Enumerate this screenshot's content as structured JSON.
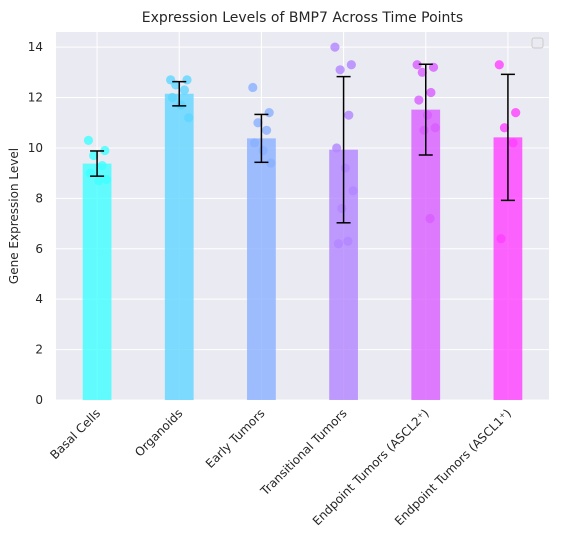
{
  "chart_data": {
    "type": "bar",
    "title": "Expression Levels of BMP7 Across Time Points",
    "xlabel": "",
    "ylabel": "Gene Expression Level",
    "ylim": [
      0,
      14.6
    ],
    "yticks": [
      0,
      2,
      4,
      6,
      8,
      10,
      12,
      14
    ],
    "grid": true,
    "legend": "top-right (empty)",
    "categories": [
      "Basal Cells",
      "Organoids",
      "Early Tumors",
      "Transitional Tumors",
      "Endpoint Tumors (ASCL2⁺)",
      "Endpoint Tumors (ASCL1⁺)"
    ],
    "values": [
      9.38,
      12.15,
      10.38,
      9.93,
      11.52,
      10.42
    ],
    "errors": [
      0.5,
      0.48,
      0.95,
      2.9,
      1.8,
      2.5
    ],
    "points": [
      [
        10.3,
        9.9,
        9.7,
        9.3,
        9.0,
        8.7,
        8.75
      ],
      [
        12.7,
        12.7,
        12.5,
        12.3,
        12.0,
        11.7,
        11.2
      ],
      [
        12.4,
        11.4,
        11.0,
        10.7,
        10.2,
        9.9,
        9.4
      ],
      [
        14.0,
        13.3,
        13.1,
        11.3,
        10.0,
        9.2,
        8.3,
        7.6,
        6.3,
        6.2
      ],
      [
        13.3,
        13.2,
        13.0,
        12.2,
        11.9,
        11.3,
        10.8,
        10.7,
        7.2
      ],
      [
        13.3,
        11.4,
        10.8,
        10.2,
        6.4
      ]
    ],
    "colors": [
      "#40ffff",
      "#5fd6ff",
      "#8ab0ff",
      "#b385ff",
      "#d95cff",
      "#ff40ff"
    ],
    "bar_alpha": 0.8,
    "point_alpha": 0.8,
    "plot_background": "#eaeaf2",
    "grid_color": "#ffffff",
    "error_color": "#000000"
  }
}
